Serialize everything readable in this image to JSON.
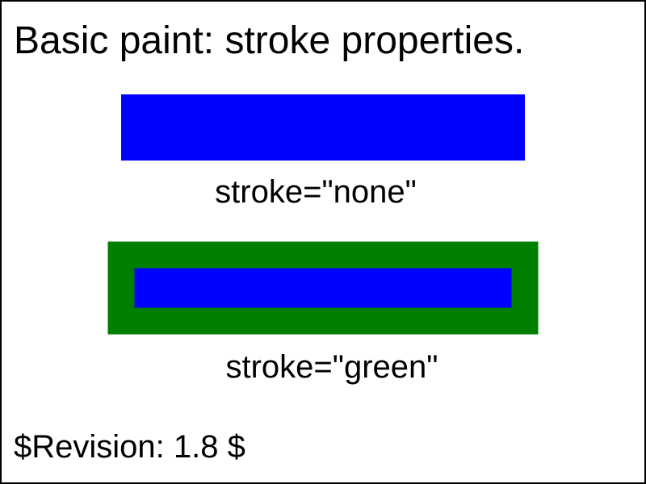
{
  "title": "Basic paint: stroke properties.",
  "colors": {
    "fill": "#0000ff",
    "stroke": "#008000",
    "border": "#000000",
    "text": "#000000",
    "background": "#ffffff"
  },
  "examples": [
    {
      "label": "stroke=\"none\""
    },
    {
      "label": "stroke=\"green\""
    }
  ],
  "revision": "$Revision: 1.8 $"
}
